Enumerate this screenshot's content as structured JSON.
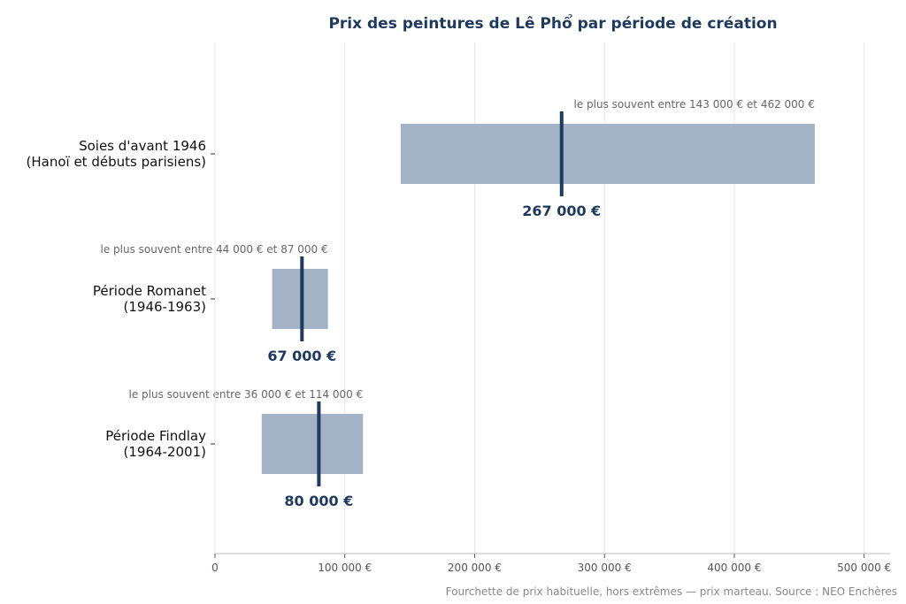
{
  "chart_data": {
    "type": "bar",
    "title": "Prix des peintures de Lê Phổ par période de création",
    "footnote": "Fourchette de prix habituelle, hors extrêmes — prix marteau. Source : NEO Enchères",
    "xlim": [
      0,
      520000
    ],
    "x_ticks": [
      {
        "value": 0,
        "label": "0"
      },
      {
        "value": 100000,
        "label": "100 000 €"
      },
      {
        "value": 200000,
        "label": "200 000 €"
      },
      {
        "value": 300000,
        "label": "300 000 €"
      },
      {
        "value": 400000,
        "label": "400 000 €"
      },
      {
        "value": 500000,
        "label": "500 000 €"
      }
    ],
    "grid": true,
    "categories": [
      {
        "label_lines": [
          "Soies d'avant 1946",
          "(Hanoï et débuts parisiens)"
        ],
        "low": 143000,
        "high": 462000,
        "median": 267000,
        "range_label": "le plus souvent entre 143 000 € et 462 000 €",
        "median_label": "267 000 €"
      },
      {
        "label_lines": [
          "Période Romanet",
          "(1946-1963)"
        ],
        "low": 44000,
        "high": 87000,
        "median": 67000,
        "range_label": "le plus souvent entre 44 000 € et 87 000 €",
        "median_label": "67 000 €"
      },
      {
        "label_lines": [
          "Période Findlay",
          "(1964-2001)"
        ],
        "low": 36000,
        "high": 114000,
        "median": 80000,
        "range_label": "le plus souvent entre 36 000 € et 114 000 €",
        "median_label": "80 000 €"
      }
    ],
    "colors": {
      "bar": "#a3b2c5",
      "median": "#1f3a5f",
      "grid": "#e6e6e6",
      "axis": "#bbbbbb"
    }
  }
}
